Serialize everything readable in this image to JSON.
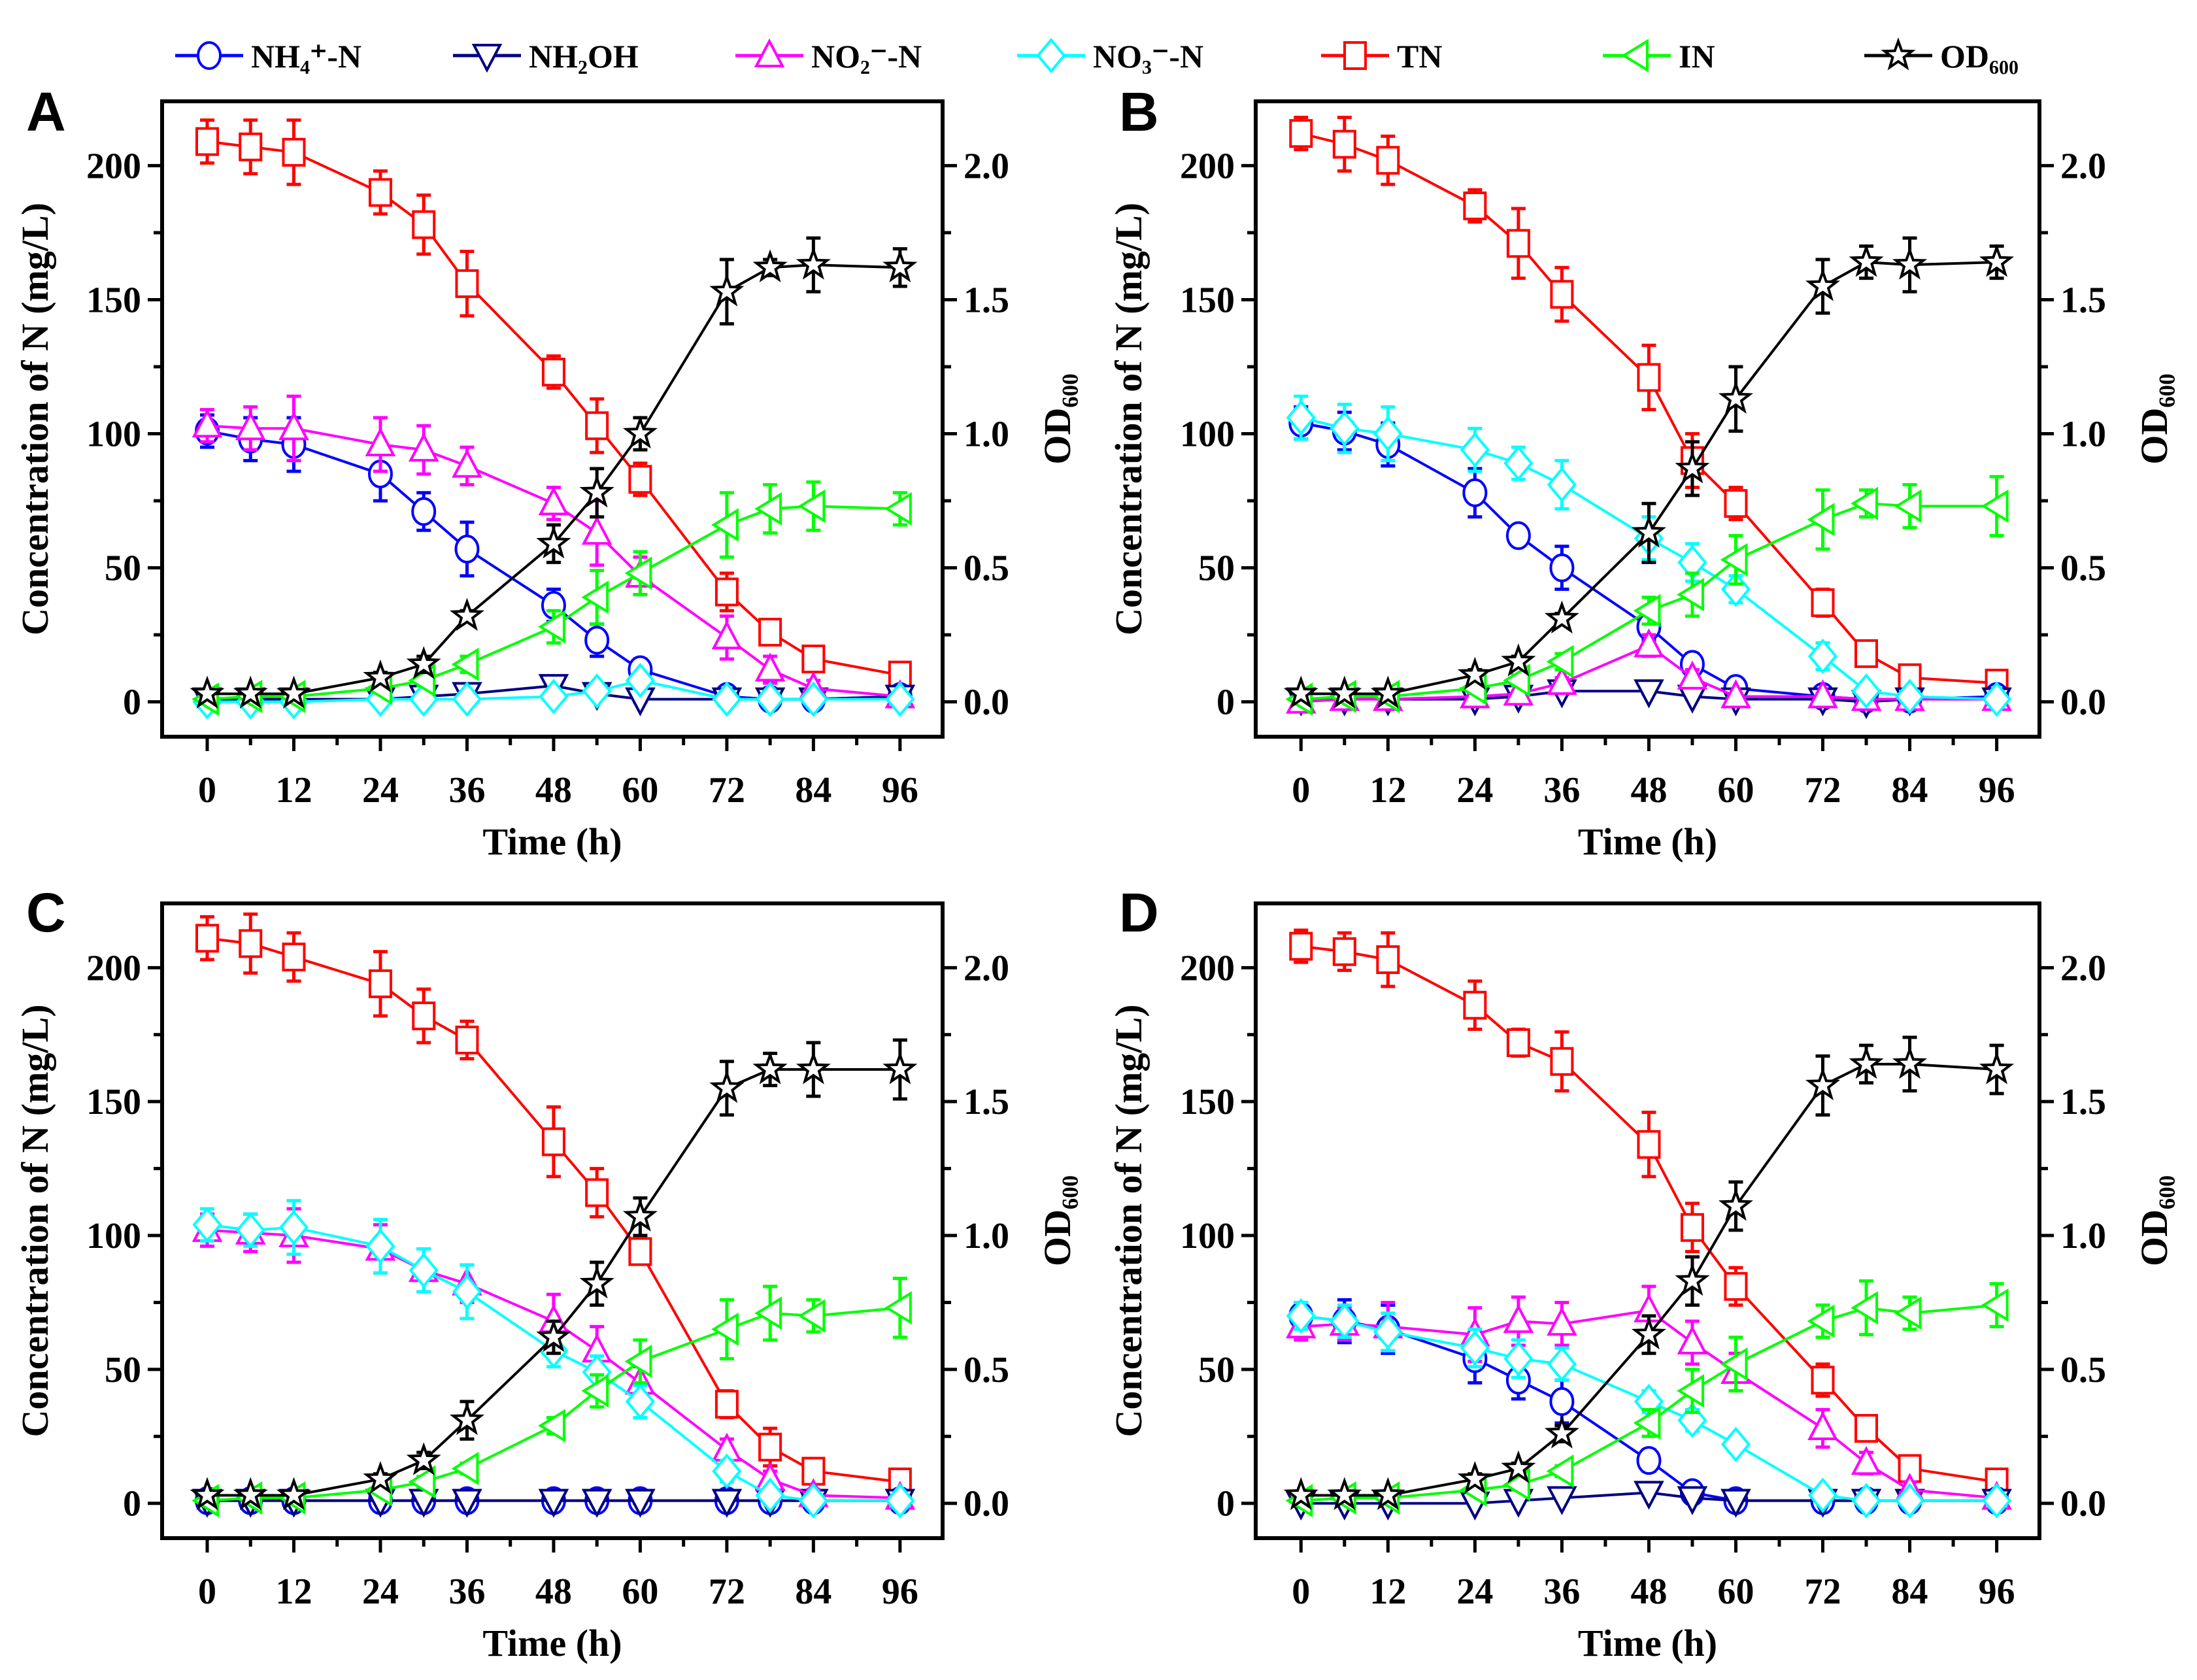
{
  "chart_data": {
    "type": "line",
    "legend": {
      "placement": "top",
      "items": [
        {
          "key": "nh4",
          "label": "NH₄⁺-N",
          "color": "#0000ff",
          "marker": "circle"
        },
        {
          "key": "nh2oh",
          "label": "NH₂OH",
          "color": "#000080",
          "marker": "triangle-down"
        },
        {
          "key": "no2",
          "label": "NO₂⁻-N",
          "color": "#ff00ff",
          "marker": "triangle-up"
        },
        {
          "key": "no3",
          "label": "NO₃⁻-N",
          "color": "#00ffff",
          "marker": "diamond"
        },
        {
          "key": "tn",
          "label": "TN",
          "color": "#ff0000",
          "marker": "square"
        },
        {
          "key": "in",
          "label": "IN",
          "color": "#00ff00",
          "marker": "triangle-left"
        },
        {
          "key": "od",
          "label": "OD₆₀₀",
          "color": "#000000",
          "marker": "star",
          "axis": "right"
        }
      ]
    },
    "xlabel": "Time (h)",
    "ylabel": "Concentration of N (mg/L)",
    "y2label": "OD₆₀₀",
    "x": [
      0,
      6,
      12,
      24,
      30,
      36,
      48,
      54,
      60,
      72,
      78,
      84,
      96
    ],
    "xticks": [
      0,
      12,
      24,
      36,
      48,
      60,
      72,
      84,
      96
    ],
    "xlim": [
      -6.25,
      101.9
    ],
    "ylim": [
      -13,
      224
    ],
    "yticks": [
      0,
      50,
      100,
      150,
      200
    ],
    "y2lim": [
      -0.13,
      2.24
    ],
    "y2ticks": [
      "0.0",
      "0.5",
      "1.0",
      "1.5",
      "2.0"
    ],
    "grid": false,
    "panels": [
      {
        "label": "A",
        "series": {
          "tn": {
            "values": [
              209,
              207,
              205,
              190,
              178,
              156,
              123,
              103,
              83,
              41,
              26,
              16,
              10
            ],
            "err": [
              8,
              10,
              12,
              8,
              11,
              12,
              6,
              10,
              6,
              7,
              3,
              4,
              2
            ]
          },
          "nh4": {
            "values": [
              101,
              98,
              96,
              85,
              71,
              57,
              36,
              23,
              12,
              2,
              1,
              1,
              2
            ],
            "err": [
              6,
              8,
              10,
              10,
              7,
              10,
              6,
              6,
              4,
              2,
              1,
              1,
              1
            ]
          },
          "nh2oh": {
            "values": [
              1,
              1,
              1,
              1,
              2,
              3,
              6,
              3,
              1,
              1,
              1,
              1,
              2
            ],
            "err": [
              1,
              1,
              1,
              1,
              1,
              1,
              1,
              1,
              1,
              1,
              1,
              1,
              1
            ]
          },
          "no2": {
            "values": [
              103,
              102,
              102,
              96,
              94,
              88,
              74,
              63,
              47,
              24,
              12,
              5,
              2
            ],
            "err": [
              6,
              8,
              12,
              10,
              9,
              7,
              6,
              12,
              7,
              8,
              5,
              3,
              1
            ]
          },
          "no3": {
            "values": [
              0,
              0,
              0,
              1,
              1,
              1,
              2,
              4,
              8,
              1,
              1,
              1,
              1
            ],
            "err": [
              1,
              1,
              1,
              1,
              1,
              1,
              1,
              2,
              3,
              1,
              1,
              1,
              1
            ]
          },
          "in": {
            "values": [
              1,
              2,
              2,
              5,
              8,
              14,
              28,
              39,
              48,
              66,
              72,
              73,
              72
            ],
            "err": [
              1,
              1,
              1,
              1,
              2,
              3,
              6,
              10,
              8,
              12,
              9,
              9,
              6
            ]
          },
          "od": {
            "values": [
              0.03,
              0.03,
              0.03,
              0.09,
              0.14,
              0.32,
              0.59,
              0.78,
              1.0,
              1.53,
              1.62,
              1.63,
              1.62
            ],
            "err": [
              0.01,
              0.01,
              0.01,
              0.02,
              0.03,
              0.02,
              0.07,
              0.09,
              0.06,
              0.12,
              0.03,
              0.1,
              0.07
            ]
          }
        }
      },
      {
        "label": "B",
        "series": {
          "tn": {
            "values": [
              212,
              208,
              202,
              185,
              171,
              152,
              121,
              90,
              74,
              37,
              18,
              9,
              7
            ],
            "err": [
              6,
              10,
              9,
              6,
              13,
              10,
              12,
              10,
              6,
              5,
              2,
              2,
              2
            ]
          },
          "nh4": {
            "values": [
              104,
              101,
              96,
              78,
              62,
              50,
              28,
              14,
              5,
              2,
              1,
              1,
              2
            ],
            "err": [
              6,
              7,
              8,
              9,
              3,
              8,
              5,
              4,
              2,
              1,
              1,
              1,
              1
            ]
          },
          "nh2oh": {
            "values": [
              1,
              1,
              1,
              1,
              2,
              4,
              4,
              2,
              1,
              1,
              0,
              1,
              1
            ],
            "err": [
              1,
              1,
              1,
              1,
              1,
              1,
              1,
              1,
              1,
              1,
              1,
              1,
              1
            ]
          },
          "no2": {
            "values": [
              0,
              1,
              1,
              2,
              3,
              7,
              21,
              9,
              2,
              2,
              1,
              1,
              1
            ],
            "err": [
              1,
              1,
              1,
              1,
              1,
              2,
              4,
              3,
              1,
              1,
              1,
              1,
              1
            ]
          },
          "no3": {
            "values": [
              106,
              102,
              100,
              94,
              89,
              81,
              61,
              52,
              42,
              17,
              4,
              2,
              1
            ],
            "err": [
              8,
              9,
              10,
              8,
              6,
              9,
              8,
              7,
              5,
              5,
              2,
              1,
              1
            ]
          },
          "in": {
            "values": [
              1,
              2,
              2,
              5,
              8,
              15,
              34,
              40,
              53,
              68,
              74,
              73,
              73
            ],
            "err": [
              1,
              1,
              1,
              1,
              2,
              3,
              5,
              8,
              9,
              11,
              5,
              8,
              11
            ]
          },
          "od": {
            "values": [
              0.03,
              0.03,
              0.03,
              0.1,
              0.15,
              0.31,
              0.63,
              0.87,
              1.13,
              1.55,
              1.64,
              1.63,
              1.64
            ],
            "err": [
              0.01,
              0.01,
              0.01,
              0.02,
              0.02,
              0.02,
              0.11,
              0.1,
              0.12,
              0.1,
              0.06,
              0.1,
              0.06
            ]
          }
        }
      },
      {
        "label": "C",
        "series": {
          "tn": {
            "values": [
              211,
              209,
              204,
              194,
              182,
              173,
              135,
              116,
              94,
              37,
              21,
              12,
              8
            ],
            "err": [
              8,
              11,
              9,
              12,
              10,
              7,
              13,
              9,
              4,
              5,
              7,
              4,
              2
            ]
          },
          "nh4": {
            "values": [
              1,
              1,
              1,
              1,
              1,
              1,
              1,
              1,
              1,
              1,
              1,
              1,
              1
            ],
            "err": [
              1,
              1,
              1,
              1,
              1,
              1,
              1,
              1,
              1,
              1,
              1,
              1,
              1
            ]
          },
          "nh2oh": {
            "values": [
              1,
              1,
              1,
              1,
              1,
              1,
              1,
              1,
              1,
              1,
              1,
              1,
              1
            ],
            "err": [
              1,
              1,
              1,
              1,
              1,
              1,
              1,
              1,
              1,
              1,
              1,
              1,
              1
            ]
          },
          "no2": {
            "values": [
              102,
              101,
              100,
              95,
              87,
              82,
              68,
              57,
              45,
              20,
              9,
              3,
              2
            ],
            "err": [
              6,
              7,
              10,
              9,
              8,
              7,
              10,
              9,
              6,
              4,
              3,
              2,
              1
            ]
          },
          "no3": {
            "values": [
              104,
              102,
              103,
              96,
              87,
              79,
              57,
              49,
              38,
              12,
              3,
              1,
              1
            ],
            "err": [
              6,
              6,
              10,
              10,
              8,
              10,
              6,
              6,
              6,
              4,
              2,
              1,
              1
            ]
          },
          "in": {
            "values": [
              1,
              2,
              2,
              5,
              8,
              13,
              29,
              42,
              53,
              65,
              71,
              70,
              73
            ],
            "err": [
              1,
              1,
              1,
              1,
              2,
              2,
              3,
              6,
              8,
              11,
              10,
              6,
              11
            ]
          },
          "od": {
            "values": [
              0.03,
              0.03,
              0.03,
              0.09,
              0.16,
              0.31,
              0.62,
              0.82,
              1.07,
              1.55,
              1.62,
              1.62,
              1.62
            ],
            "err": [
              0.01,
              0.01,
              0.01,
              0.02,
              0.03,
              0.07,
              0.06,
              0.08,
              0.07,
              0.1,
              0.06,
              0.1,
              0.11
            ]
          }
        }
      },
      {
        "label": "D",
        "series": {
          "tn": {
            "values": [
              208,
              206,
              203,
              186,
              172,
              165,
              134,
              103,
              81,
              46,
              28,
              13,
              8
            ],
            "err": [
              6,
              7,
              10,
              9,
              5,
              11,
              12,
              9,
              7,
              6,
              4,
              3,
              2
            ]
          },
          "nh4": {
            "values": [
              70,
              68,
              65,
              54,
              46,
              38,
              16,
              4,
              1,
              1,
              1,
              1,
              1
            ],
            "err": [
              5,
              8,
              9,
              9,
              7,
              8,
              4,
              2,
              1,
              1,
              1,
              1,
              1
            ]
          },
          "nh2oh": {
            "values": [
              0,
              0,
              0,
              0,
              1,
              2,
              4,
              2,
              1,
              1,
              1,
              1,
              1
            ],
            "err": [
              1,
              1,
              1,
              1,
              1,
              1,
              1,
              1,
              1,
              1,
              1,
              1,
              1
            ]
          },
          "no2": {
            "values": [
              66,
              67,
              66,
              63,
              68,
              67,
              72,
              60,
              49,
              28,
              15,
              5,
              2
            ],
            "err": [
              5,
              6,
              9,
              10,
              9,
              8,
              9,
              8,
              7,
              7,
              4,
              3,
              1
            ]
          },
          "no3": {
            "values": [
              70,
              68,
              64,
              58,
              54,
              52,
              38,
              31,
              22,
              3,
              1,
              1,
              1
            ],
            "err": [
              5,
              6,
              7,
              7,
              7,
              6,
              4,
              4,
              3,
              2,
              1,
              1,
              1
            ]
          },
          "in": {
            "values": [
              1,
              2,
              2,
              5,
              7,
              12,
              30,
              42,
              52,
              68,
              73,
              71,
              74
            ],
            "err": [
              1,
              1,
              1,
              1,
              2,
              2,
              5,
              8,
              10,
              6,
              10,
              6,
              8
            ]
          },
          "od": {
            "values": [
              0.03,
              0.03,
              0.03,
              0.09,
              0.13,
              0.26,
              0.63,
              0.83,
              1.11,
              1.56,
              1.64,
              1.64,
              1.62
            ],
            "err": [
              0.01,
              0.01,
              0.01,
              0.02,
              0.02,
              0.03,
              0.07,
              0.09,
              0.09,
              0.11,
              0.07,
              0.1,
              0.09
            ]
          }
        }
      }
    ]
  }
}
